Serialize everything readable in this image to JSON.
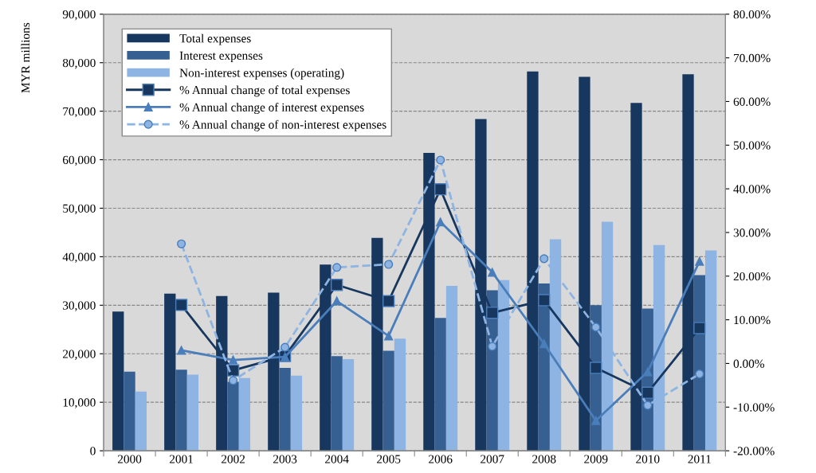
{
  "chart_data": {
    "type": "bar",
    "ylabel": "MYR millions",
    "categories": [
      "2000",
      "2001",
      "2002",
      "2003",
      "2004",
      "2005",
      "2006",
      "2007",
      "2008",
      "2009",
      "2010",
      "2011"
    ],
    "series": [
      {
        "name": "Total expenses",
        "color": "#17375e",
        "values": [
          28700,
          32400,
          31900,
          32600,
          38400,
          43900,
          61400,
          68400,
          78200,
          77100,
          71700,
          77600
        ]
      },
      {
        "name": "Interest expenses",
        "color": "#366092",
        "values": [
          16300,
          16700,
          14200,
          17100,
          19500,
          20600,
          27400,
          33100,
          34500,
          30000,
          29300,
          36200
        ]
      },
      {
        "name": "Non-interest expenses (operating)",
        "color": "#8db4e2",
        "values": [
          12200,
          15700,
          15000,
          15500,
          18900,
          23100,
          34000,
          35200,
          43600,
          47200,
          42400,
          41300
        ]
      },
      {
        "name": "% Annual change of total expenses",
        "type": "line",
        "axis": "y2",
        "color": "#17375e",
        "marker": "square",
        "line_style": "solid",
        "values": [
          null,
          13.4,
          -1.6,
          1.7,
          18.0,
          14.3,
          39.9,
          11.6,
          14.5,
          -1.0,
          -6.7,
          8.1
        ]
      },
      {
        "name": "% Annual change of interest expenses",
        "type": "line",
        "axis": "y2",
        "color": "#4a7ebb",
        "marker": "triangle",
        "line_style": "solid",
        "values": [
          null,
          3.0,
          0.8,
          1.5,
          14.3,
          6.3,
          32.4,
          20.9,
          4.5,
          -13.1,
          -1.9,
          23.4
        ]
      },
      {
        "name": "% Annual change of non-interest expenses",
        "type": "line",
        "axis": "y2",
        "color": "#8db4e2",
        "marker": "circle",
        "line_style": "dashed",
        "values": [
          null,
          27.4,
          -3.9,
          3.7,
          22.0,
          22.7,
          46.6,
          3.9,
          24.0,
          8.3,
          -9.6,
          -2.4
        ]
      }
    ],
    "ylim": [
      0,
      90000
    ],
    "yticks": [
      {
        "value": 0,
        "label": "0"
      },
      {
        "value": 10000,
        "label": "10,000"
      },
      {
        "value": 20000,
        "label": "20,000"
      },
      {
        "value": 30000,
        "label": "30,000"
      },
      {
        "value": 40000,
        "label": "40,000"
      },
      {
        "value": 50000,
        "label": "50,000"
      },
      {
        "value": 60000,
        "label": "60,000"
      },
      {
        "value": 70000,
        "label": "70,000"
      },
      {
        "value": 80000,
        "label": "80,000"
      },
      {
        "value": 90000,
        "label": "90,000"
      }
    ],
    "y2lim": [
      -20,
      80
    ],
    "y2ticks": [
      {
        "value": -20,
        "label": "-20.00%"
      },
      {
        "value": -10,
        "label": "-10.00%"
      },
      {
        "value": 0,
        "label": "0.00%"
      },
      {
        "value": 10,
        "label": "10.00%"
      },
      {
        "value": 20,
        "label": "20.00%"
      },
      {
        "value": 30,
        "label": "30.00%"
      },
      {
        "value": 40,
        "label": "40.00%"
      },
      {
        "value": 50,
        "label": "50.00%"
      },
      {
        "value": 60,
        "label": "60.00%"
      },
      {
        "value": 70,
        "label": "70.00%"
      },
      {
        "value": 80,
        "label": "80.00%"
      }
    ],
    "grid": "y",
    "legend": "top left"
  }
}
